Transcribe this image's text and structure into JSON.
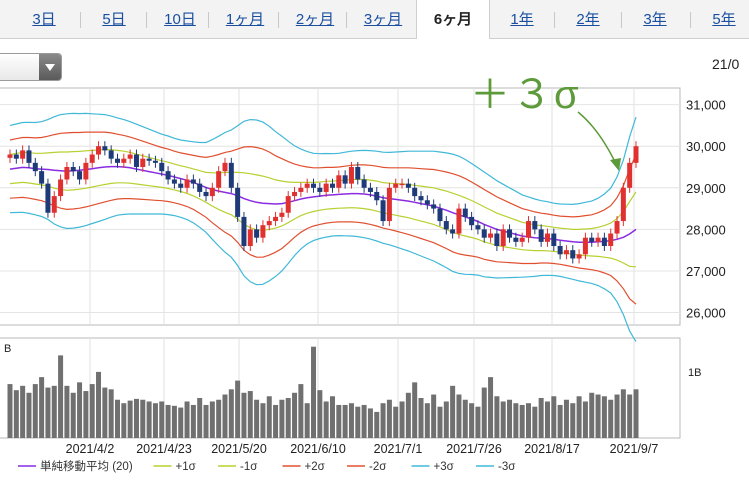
{
  "tabs": [
    {
      "label": "3日"
    },
    {
      "label": "5日"
    },
    {
      "label": "10日"
    },
    {
      "label": "1ヶ月"
    },
    {
      "label": "2ヶ月"
    },
    {
      "label": "3ヶ月"
    },
    {
      "label": "6ヶ月",
      "active": true
    },
    {
      "label": "1年"
    },
    {
      "label": "2年"
    },
    {
      "label": "3年"
    },
    {
      "label": "5年"
    }
  ],
  "corner_date": "21/0",
  "annotation": "＋３σ",
  "chart_data": {
    "type": "candlestick",
    "y_ticks": [
      31000,
      30000,
      29000,
      28000,
      27000,
      26000
    ],
    "y_tick_labels": [
      "31,000",
      "30,000",
      "29,000",
      "28,000",
      "27,000",
      "26,000"
    ],
    "ylim": [
      25700,
      31400
    ],
    "x_tick_labels": [
      "2021/4/2",
      "2021/4/23",
      "2021/5/20",
      "2021/6/10",
      "2021/7/1",
      "2021/7/26",
      "2021/8/17",
      "2021/9/7"
    ],
    "volume_axis": {
      "unit_label": "B",
      "tick_label": "1B"
    },
    "colors": {
      "up": "#e03030",
      "down": "#1e3a78",
      "sma": "#8a2be2",
      "s1": "#b8d030",
      "s2": "#e05030",
      "s3": "#40b8d8",
      "volume": "#707070"
    },
    "close": [
      29800,
      29700,
      29900,
      29600,
      29400,
      29100,
      28400,
      28800,
      29200,
      29500,
      29400,
      29200,
      29600,
      29800,
      30000,
      29900,
      29700,
      29600,
      29700,
      29800,
      29500,
      29700,
      29650,
      29600,
      29400,
      29200,
      29100,
      29000,
      29200,
      29100,
      28900,
      28800,
      29000,
      29400,
      29600,
      29000,
      28300,
      27600,
      28000,
      27800,
      28100,
      28200,
      28300,
      28400,
      28800,
      28900,
      29000,
      29100,
      29000,
      28900,
      29100,
      29000,
      29300,
      29100,
      29500,
      29200,
      29000,
      28900,
      28700,
      28200,
      29000,
      29100,
      29100,
      29000,
      28800,
      28700,
      28600,
      28500,
      28200,
      28000,
      27900,
      28500,
      28300,
      28100,
      28000,
      27800,
      27900,
      27600,
      28000,
      27800,
      27700,
      27800,
      28200,
      28000,
      27700,
      27900,
      27600,
      27400,
      27500,
      27300,
      27400,
      27800,
      27700,
      27800,
      27600,
      27900,
      28200,
      29000,
      29600,
      30000
    ],
    "sma": [
      29450,
      29470,
      29490,
      29480,
      29460,
      29450,
      29440,
      29420,
      29410,
      29400,
      29410,
      29420,
      29440,
      29460,
      29480,
      29500,
      29510,
      29510,
      29500,
      29480,
      29450,
      29420,
      29390,
      29360,
      29330,
      29300,
      29260,
      29220,
      29180,
      29130,
      29070,
      29010,
      28960,
      28920,
      28890,
      28860,
      28810,
      28740,
      28690,
      28650,
      28630,
      28620,
      28610,
      28620,
      28650,
      28690,
      28730,
      28760,
      28780,
      28800,
      28820,
      28830,
      28840,
      28850,
      28860,
      28860,
      28850,
      28830,
      28800,
      28760,
      28740,
      28720,
      28700,
      28680,
      28650,
      28620,
      28590,
      28560,
      28510,
      28460,
      28400,
      28350,
      28300,
      28250,
      28190,
      28120,
      28060,
      28000,
      27960,
      27920,
      27880,
      27840,
      27820,
      27800,
      27790,
      27780,
      27760,
      27740,
      27720,
      27700,
      27690,
      27690,
      27690,
      27700,
      27710,
      27730,
      27760,
      27810,
      27890,
      28000
    ],
    "sigma": [
      350,
      355,
      360,
      365,
      370,
      380,
      400,
      430,
      450,
      460,
      460,
      455,
      450,
      440,
      430,
      420,
      405,
      390,
      380,
      370,
      360,
      350,
      340,
      330,
      320,
      315,
      310,
      310,
      315,
      325,
      340,
      360,
      400,
      440,
      480,
      510,
      560,
      620,
      650,
      660,
      650,
      620,
      580,
      540,
      490,
      440,
      400,
      370,
      350,
      340,
      335,
      330,
      330,
      335,
      340,
      345,
      350,
      355,
      360,
      365,
      370,
      380,
      390,
      400,
      410,
      420,
      430,
      440,
      450,
      460,
      470,
      470,
      460,
      445,
      430,
      420,
      405,
      390,
      375,
      360,
      345,
      330,
      320,
      310,
      300,
      295,
      290,
      290,
      295,
      300,
      310,
      320,
      330,
      350,
      380,
      420,
      500,
      620,
      780,
      900
    ],
    "volume": [
      0.62,
      0.55,
      0.6,
      0.52,
      0.62,
      0.7,
      0.58,
      0.6,
      0.95,
      0.6,
      0.52,
      0.64,
      0.54,
      0.62,
      0.76,
      0.58,
      0.56,
      0.44,
      0.4,
      0.43,
      0.45,
      0.44,
      0.42,
      0.4,
      0.42,
      0.38,
      0.37,
      0.35,
      0.42,
      0.38,
      0.46,
      0.38,
      0.42,
      0.44,
      0.5,
      0.56,
      0.66,
      0.52,
      0.54,
      0.44,
      0.4,
      0.48,
      0.38,
      0.44,
      0.46,
      0.52,
      0.62,
      0.4,
      1.05,
      0.55,
      0.42,
      0.48,
      0.38,
      0.38,
      0.4,
      0.36,
      0.38,
      0.34,
      0.3,
      0.4,
      0.44,
      0.36,
      0.42,
      0.52,
      0.64,
      0.46,
      0.4,
      0.5,
      0.36,
      0.42,
      0.6,
      0.5,
      0.44,
      0.4,
      0.36,
      0.58,
      0.7,
      0.48,
      0.42,
      0.44,
      0.4,
      0.38,
      0.4,
      0.36,
      0.46,
      0.42,
      0.48,
      0.38,
      0.44,
      0.4,
      0.48,
      0.42,
      0.52,
      0.5,
      0.48,
      0.44,
      0.5,
      0.56,
      0.5,
      0.56
    ],
    "legend": [
      {
        "label": "単純移動平均 (20)",
        "color": "#8a2be2"
      },
      {
        "label": "+1σ",
        "color": "#b8d030"
      },
      {
        "label": "-1σ",
        "color": "#c8c870"
      },
      {
        "label": "+2σ",
        "color": "#e05030"
      },
      {
        "label": "-2σ",
        "color": "#d06040"
      },
      {
        "label": "+3σ",
        "color": "#40b8d8"
      },
      {
        "label": "-3σ",
        "color": "#60c0e0"
      }
    ]
  }
}
